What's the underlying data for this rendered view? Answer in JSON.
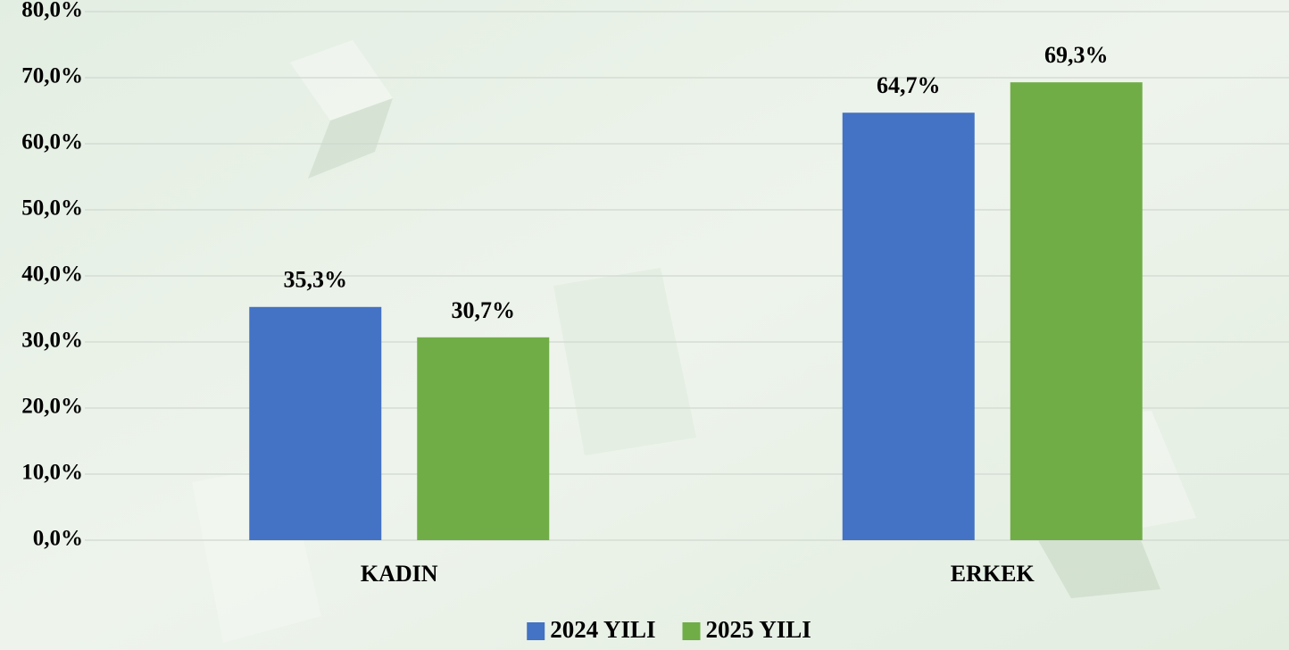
{
  "chart_data": {
    "type": "bar",
    "categories": [
      "KADIN",
      "ERKEK"
    ],
    "series": [
      {
        "name": "2024 YILI",
        "color": "#4472c4",
        "values": [
          35.3,
          64.7
        ],
        "value_labels": [
          "35,3%",
          "64,7%"
        ]
      },
      {
        "name": "2025 YILI",
        "color": "#70ad47",
        "values": [
          30.7,
          69.3
        ],
        "value_labels": [
          "30,7%",
          "69,3%"
        ]
      }
    ],
    "ylim": [
      0,
      80
    ],
    "yticks": [
      {
        "value": 0,
        "label": "0,0%"
      },
      {
        "value": 10,
        "label": "10,0%"
      },
      {
        "value": 20,
        "label": "20,0%"
      },
      {
        "value": 30,
        "label": "30,0%"
      },
      {
        "value": 40,
        "label": "40,0%"
      },
      {
        "value": 50,
        "label": "50,0%"
      },
      {
        "value": 60,
        "label": "60,0%"
      },
      {
        "value": 70,
        "label": "70,0%"
      },
      {
        "value": 80,
        "label": "80,0%"
      }
    ],
    "grid": true,
    "legend": "bottom"
  }
}
